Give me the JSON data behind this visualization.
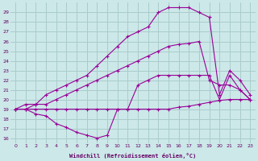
{
  "xlabel": "Windchill (Refroidissement éolien,°C)",
  "bg_color": "#cce8e8",
  "grid_color": "#aacccc",
  "line_color": "#990099",
  "xlim": [
    -0.5,
    23.5
  ],
  "ylim": [
    15.5,
    30.0
  ],
  "xticks": [
    0,
    1,
    2,
    3,
    4,
    5,
    6,
    7,
    8,
    9,
    10,
    11,
    12,
    13,
    14,
    15,
    16,
    17,
    18,
    19,
    20,
    21,
    22,
    23
  ],
  "yticks": [
    16,
    17,
    18,
    19,
    20,
    21,
    22,
    23,
    24,
    25,
    26,
    27,
    28,
    29
  ],
  "line1_x": [
    0,
    1,
    2,
    3,
    4,
    5,
    6,
    7,
    8,
    9,
    10,
    11,
    12,
    13,
    14,
    15,
    16,
    17,
    18,
    19,
    20,
    21,
    22,
    23
  ],
  "line1_y": [
    19.0,
    19.0,
    18.5,
    18.3,
    17.5,
    17.1,
    16.6,
    16.3,
    16.0,
    16.3,
    19.0,
    19.0,
    21.5,
    22.0,
    22.5,
    22.5,
    22.5,
    22.5,
    22.5,
    22.5,
    20.0,
    22.5,
    21.0,
    20.0
  ],
  "line2_x": [
    0,
    1,
    2,
    3,
    4,
    5,
    6,
    7,
    8,
    9,
    10,
    11,
    12,
    13,
    14,
    15,
    16,
    17,
    18,
    19,
    20,
    21,
    22,
    23
  ],
  "line2_y": [
    19.0,
    19.0,
    19.0,
    19.0,
    19.0,
    19.0,
    19.0,
    19.0,
    19.0,
    19.0,
    19.0,
    19.0,
    19.0,
    19.0,
    19.0,
    19.0,
    19.2,
    19.3,
    19.5,
    19.7,
    19.9,
    20.0,
    20.0,
    20.0
  ],
  "line3_x": [
    0,
    1,
    2,
    3,
    4,
    5,
    6,
    7,
    8,
    9,
    10,
    11,
    12,
    13,
    14,
    15,
    16,
    17,
    18,
    19,
    20,
    21,
    22,
    23
  ],
  "line3_y": [
    19.0,
    19.5,
    19.5,
    20.5,
    21.0,
    21.5,
    22.0,
    22.5,
    23.5,
    24.5,
    25.5,
    26.5,
    27.0,
    27.5,
    29.0,
    29.5,
    29.5,
    29.5,
    29.0,
    28.5,
    20.5,
    23.0,
    22.0,
    20.5
  ],
  "line4_x": [
    0,
    1,
    2,
    3,
    4,
    5,
    6,
    7,
    8,
    9,
    10,
    11,
    12,
    13,
    14,
    15,
    16,
    17,
    18,
    19,
    20,
    21,
    22,
    23
  ],
  "line4_y": [
    19.0,
    19.0,
    19.5,
    19.5,
    20.0,
    20.5,
    21.0,
    21.5,
    22.0,
    22.5,
    23.0,
    23.5,
    24.0,
    24.5,
    25.0,
    25.5,
    25.7,
    25.8,
    26.0,
    22.0,
    21.5,
    21.5,
    21.0,
    20.0
  ]
}
